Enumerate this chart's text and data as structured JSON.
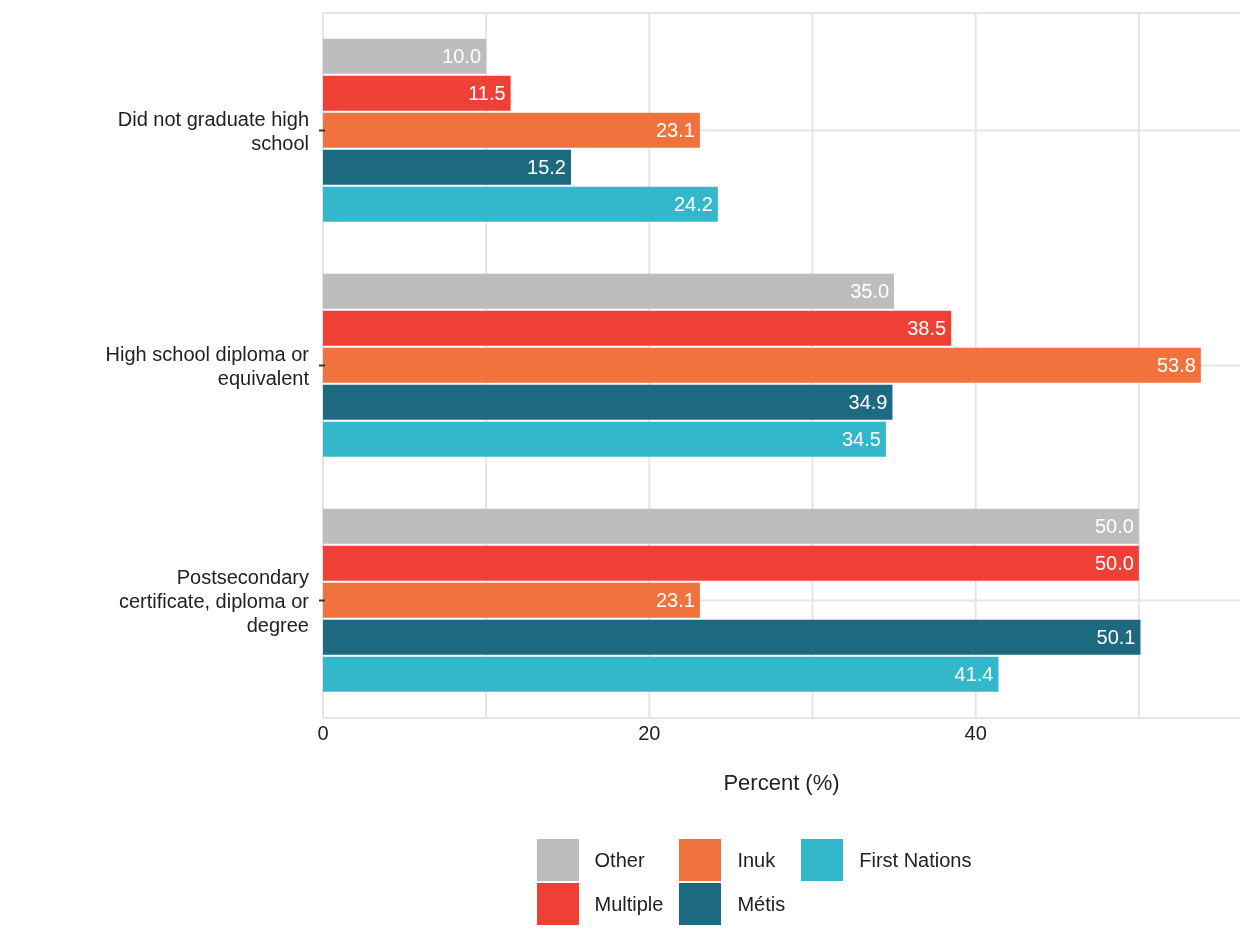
{
  "chart_data": {
    "type": "bar",
    "orientation": "horizontal",
    "xlabel": "Percent (%)",
    "categories": [
      "Did not graduate high school",
      "High school diploma or equivalent",
      "Postsecondary certificate, diploma or degree"
    ],
    "series": [
      {
        "name": "Other",
        "color": "#bdbdbd",
        "values": [
          10.0,
          35.0,
          50.0
        ],
        "value_labels": [
          "10.0",
          "35.0",
          "50.0"
        ]
      },
      {
        "name": "Multiple",
        "color": "#ee4035",
        "values": [
          11.5,
          38.5,
          50.0
        ],
        "value_labels": [
          "11.5",
          "38.5",
          "50.0"
        ]
      },
      {
        "name": "Inuk",
        "color": "#f0733d",
        "values": [
          23.1,
          53.8,
          23.1
        ],
        "value_labels": [
          "23.1",
          "53.8",
          "23.1"
        ]
      },
      {
        "name": "Métis",
        "color": "#1c6980",
        "values": [
          15.2,
          34.9,
          50.1
        ],
        "value_labels": [
          "15.2",
          "34.9",
          "50.1"
        ]
      },
      {
        "name": "First Nations",
        "color": "#33b8cb",
        "values": [
          24.2,
          34.5,
          41.4
        ],
        "value_labels": [
          "24.2",
          "34.5",
          "41.4"
        ]
      }
    ],
    "xlim": [
      0,
      56.2
    ],
    "xticks": [
      0,
      {
        "value": 10,
        "label": null
      },
      20,
      {
        "value": 30,
        "label": null
      },
      40,
      {
        "value": 50,
        "label": null
      }
    ],
    "grid": true,
    "legend": "bottom"
  }
}
